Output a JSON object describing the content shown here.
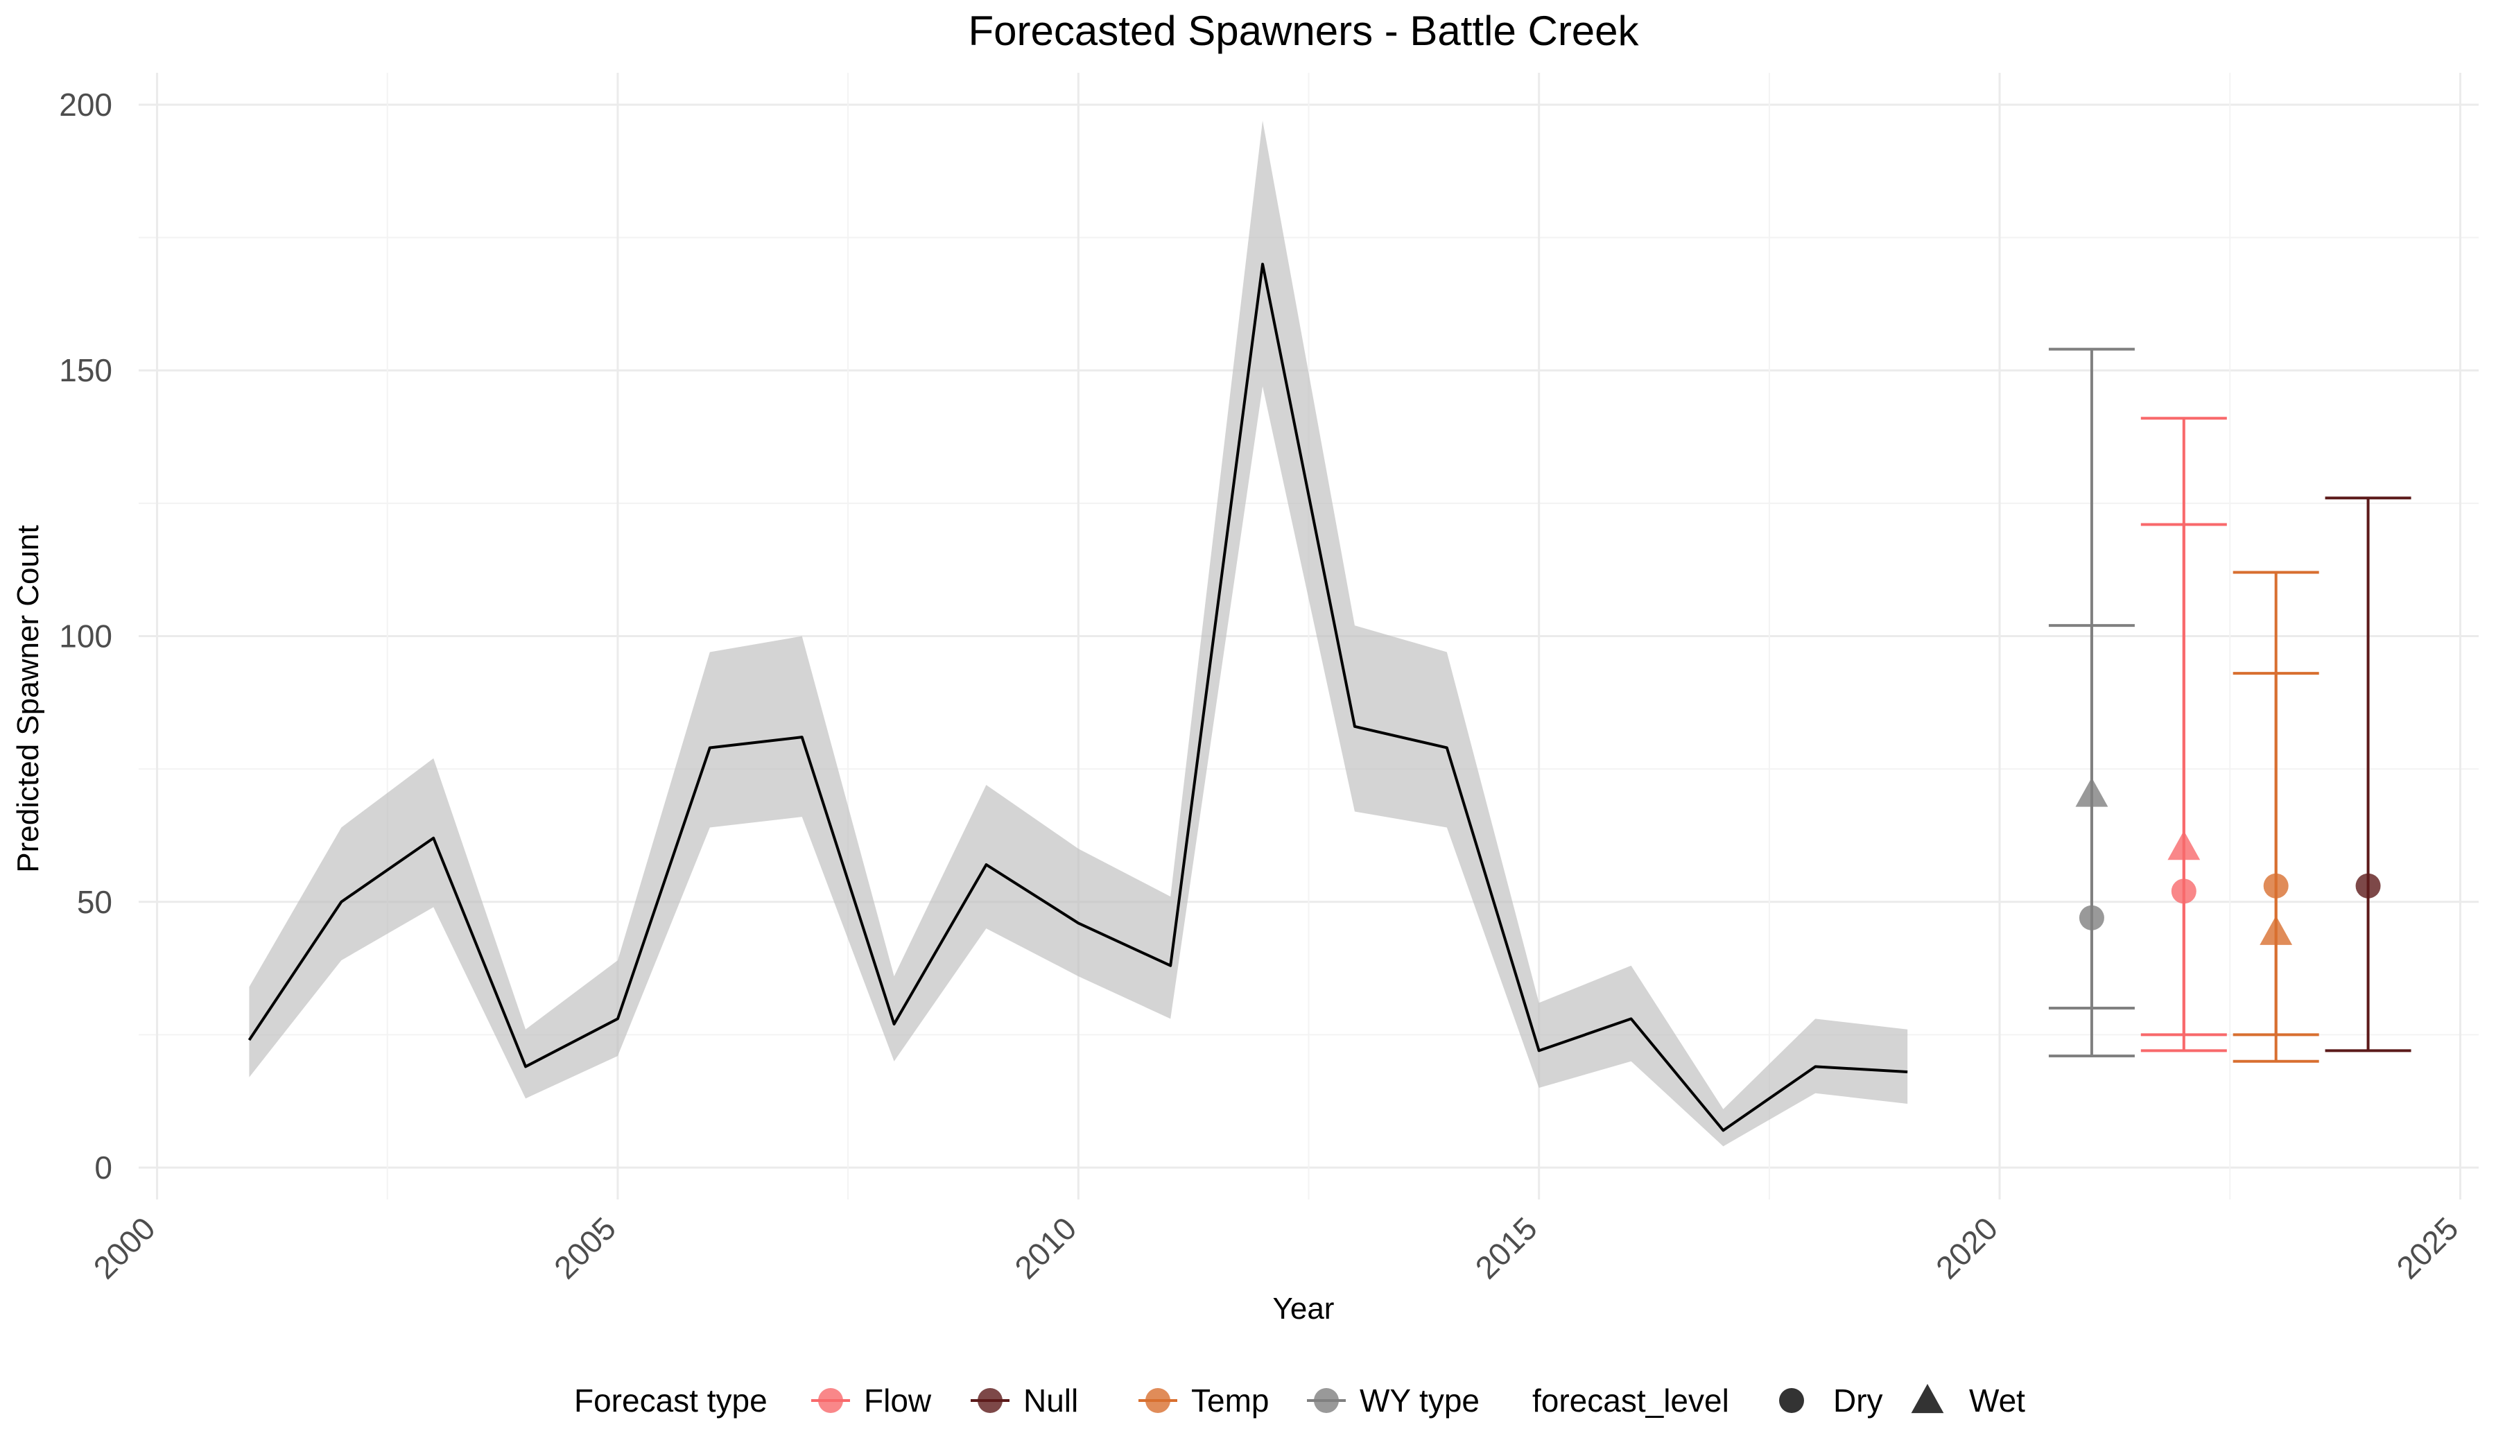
{
  "chart_data": {
    "type": "line",
    "title": "Forecasted Spawners - Battle Creek",
    "xlabel": "Year",
    "ylabel": "Predicted Spawner Count",
    "xlim": [
      1999.8,
      2025.2
    ],
    "ylim": [
      -6,
      206
    ],
    "x_ticks": [
      2000,
      2005,
      2010,
      2015,
      2020,
      2025
    ],
    "x_tick_labels": [
      "2000",
      "2005",
      "2010",
      "2015",
      "2020",
      "2025"
    ],
    "y_ticks": [
      0,
      50,
      100,
      150,
      200
    ],
    "y_tick_labels": [
      "0",
      "50",
      "100",
      "150",
      "200"
    ],
    "grid": true,
    "legend_position": "bottom",
    "historical": {
      "x": [
        2001,
        2002,
        2003,
        2004,
        2005,
        2006,
        2007,
        2008,
        2009,
        2010,
        2011,
        2012,
        2013,
        2014,
        2015,
        2016,
        2017,
        2018,
        2019
      ],
      "y": [
        24,
        50,
        62,
        19,
        28,
        79,
        81,
        27,
        57,
        46,
        38,
        170,
        83,
        79,
        22,
        28,
        7,
        19,
        18
      ],
      "lower": [
        17,
        39,
        49,
        13,
        21,
        64,
        66,
        20,
        45,
        36,
        28,
        147,
        67,
        64,
        15,
        20,
        4,
        14,
        12
      ],
      "upper": [
        34,
        64,
        77,
        26,
        39,
        97,
        100,
        36,
        72,
        60,
        51,
        197,
        102,
        97,
        31,
        38,
        11,
        28,
        26
      ],
      "line_color": "#000000",
      "band_color": "#bdbdbd"
    },
    "forecasts": [
      {
        "type": "WY type",
        "x": 2021,
        "color": "#808080",
        "dry": 47,
        "wet": 70,
        "dry_range": [
          30,
          102
        ],
        "wet_range": [
          21,
          154
        ]
      },
      {
        "type": "Flow",
        "x": 2022,
        "color": "#f8696b",
        "dry": 52,
        "wet": 60,
        "dry_range": [
          25,
          121
        ],
        "wet_range": [
          22,
          141
        ]
      },
      {
        "type": "Temp",
        "x": 2023,
        "color": "#d86f30",
        "dry": 53,
        "wet": 44,
        "dry_range": [
          25,
          93
        ],
        "wet_range": [
          20,
          112
        ]
      },
      {
        "type": "Null",
        "x": 2024,
        "color": "#5c1a1a",
        "dry": 53,
        "wet": null,
        "dry_range": [
          22,
          126
        ],
        "wet_range": null
      }
    ]
  },
  "legend": {
    "type_title": "Forecast type",
    "type_items": [
      {
        "label": "Flow",
        "color": "#f8696b"
      },
      {
        "label": "Null",
        "color": "#5c1a1a"
      },
      {
        "label": "Temp",
        "color": "#d86f30"
      },
      {
        "label": "WY type",
        "color": "#808080"
      }
    ],
    "level_title": "forecast_level",
    "level_items": [
      {
        "label": "Dry",
        "shape": "circle"
      },
      {
        "label": "Wet",
        "shape": "triangle"
      }
    ]
  }
}
